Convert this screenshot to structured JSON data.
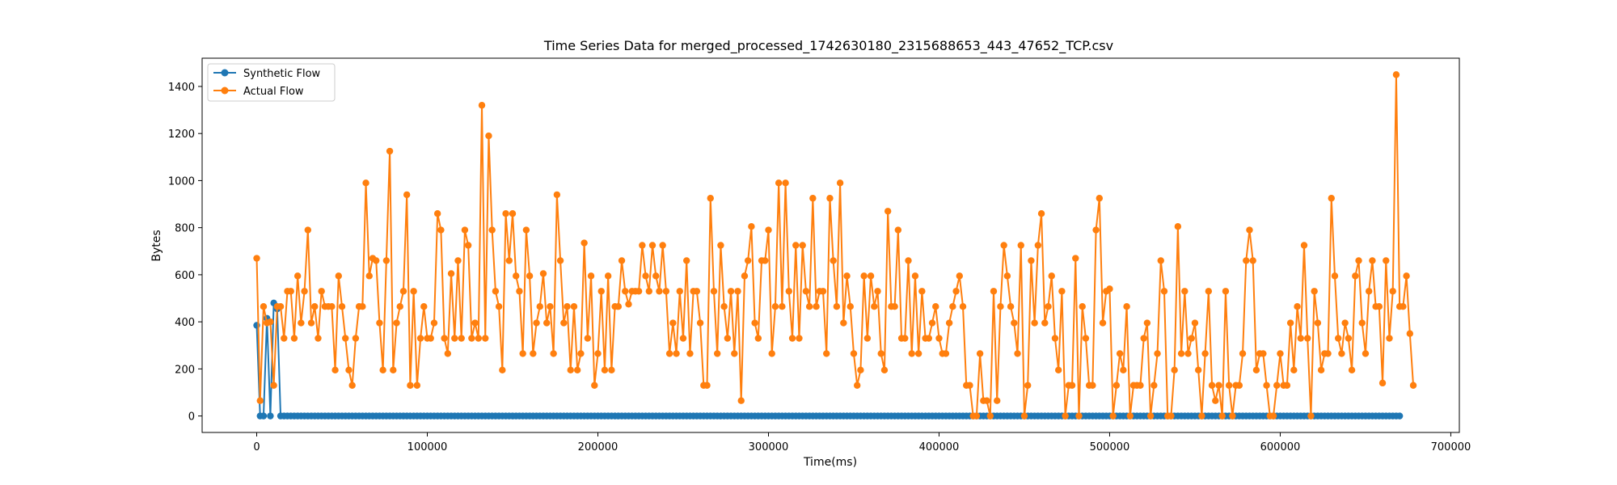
{
  "chart_data": {
    "type": "line",
    "title": "Time Series Data for merged_processed_1742630180_2315688653_443_47652_TCP.csv",
    "xlabel": "Time(ms)",
    "ylabel": "Bytes",
    "xlim": [
      -32000,
      705000
    ],
    "ylim": [
      -70,
      1520
    ],
    "xticks": [
      0,
      100000,
      200000,
      300000,
      400000,
      500000,
      600000,
      700000
    ],
    "yticks": [
      0,
      200,
      400,
      600,
      800,
      1000,
      1200,
      1400
    ],
    "grid": false,
    "legend_position": "top-left",
    "series": [
      {
        "name": "Synthetic Flow",
        "color": "#1f77b4",
        "x_start": 0,
        "x_step": 2000,
        "x_end": 670000,
        "head_values": [
          385,
          0,
          0,
          415,
          0,
          480,
          455
        ],
        "rest_value": 0
      },
      {
        "name": "Actual Flow",
        "color": "#ff7f0e",
        "x_start": 0,
        "x_step": 2000,
        "values": [
          670,
          65,
          465,
          395,
          400,
          130,
          465,
          465,
          330,
          530,
          530,
          330,
          595,
          395,
          530,
          790,
          395,
          465,
          330,
          530,
          465,
          465,
          465,
          195,
          595,
          465,
          330,
          195,
          130,
          330,
          465,
          465,
          990,
          595,
          670,
          660,
          395,
          195,
          660,
          1125,
          195,
          395,
          465,
          530,
          940,
          130,
          530,
          130,
          330,
          465,
          330,
          330,
          395,
          860,
          790,
          330,
          265,
          605,
          330,
          660,
          330,
          790,
          725,
          330,
          395,
          330,
          1320,
          330,
          1190,
          790,
          530,
          465,
          195,
          860,
          660,
          860,
          595,
          530,
          265,
          790,
          595,
          265,
          395,
          465,
          605,
          395,
          465,
          265,
          940,
          660,
          395,
          465,
          195,
          465,
          195,
          265,
          735,
          330,
          595,
          130,
          265,
          530,
          195,
          595,
          195,
          465,
          465,
          660,
          530,
          475,
          530,
          530,
          530,
          725,
          595,
          530,
          725,
          595,
          530,
          725,
          530,
          265,
          395,
          265,
          530,
          330,
          660,
          265,
          530,
          530,
          395,
          130,
          130,
          925,
          530,
          265,
          725,
          465,
          330,
          530,
          265,
          530,
          65,
          595,
          660,
          805,
          395,
          330,
          660,
          660,
          790,
          265,
          465,
          990,
          465,
          990,
          530,
          330,
          725,
          330,
          725,
          530,
          465,
          925,
          465,
          530,
          530,
          265,
          925,
          660,
          465,
          990,
          395,
          595,
          465,
          265,
          130,
          195,
          595,
          330,
          595,
          465,
          530,
          265,
          195,
          870,
          465,
          465,
          790,
          330,
          330,
          660,
          265,
          595,
          265,
          530,
          330,
          330,
          395,
          465,
          330,
          265,
          265,
          395,
          465,
          530,
          595,
          465,
          130,
          130,
          0,
          0,
          265,
          65,
          65,
          0,
          530,
          65,
          465,
          725,
          595,
          465,
          395,
          265,
          725,
          0,
          130,
          660,
          395,
          725,
          860,
          395,
          465,
          595,
          330,
          195,
          530,
          0,
          130,
          130,
          670,
          0,
          465,
          330,
          130,
          130,
          790,
          925,
          395,
          530,
          540,
          0,
          130,
          265,
          195,
          465,
          0,
          130,
          130,
          130,
          330,
          395,
          0,
          130,
          265,
          660,
          530,
          0,
          0,
          195,
          805,
          265,
          530,
          265,
          330,
          395,
          195,
          0,
          265,
          530,
          130,
          65,
          130,
          0,
          530,
          130,
          0,
          130,
          130,
          265,
          660,
          790,
          660,
          195,
          265,
          265,
          130,
          0,
          0,
          130,
          265,
          130,
          130,
          395,
          195,
          465,
          330,
          725,
          330,
          0,
          530,
          395,
          195,
          265,
          265,
          925,
          595,
          330,
          265,
          395,
          330,
          195,
          595,
          660,
          395,
          265,
          530,
          660,
          465,
          465,
          140,
          660,
          330,
          530,
          1450,
          465,
          465,
          595,
          350,
          130
        ]
      }
    ]
  }
}
